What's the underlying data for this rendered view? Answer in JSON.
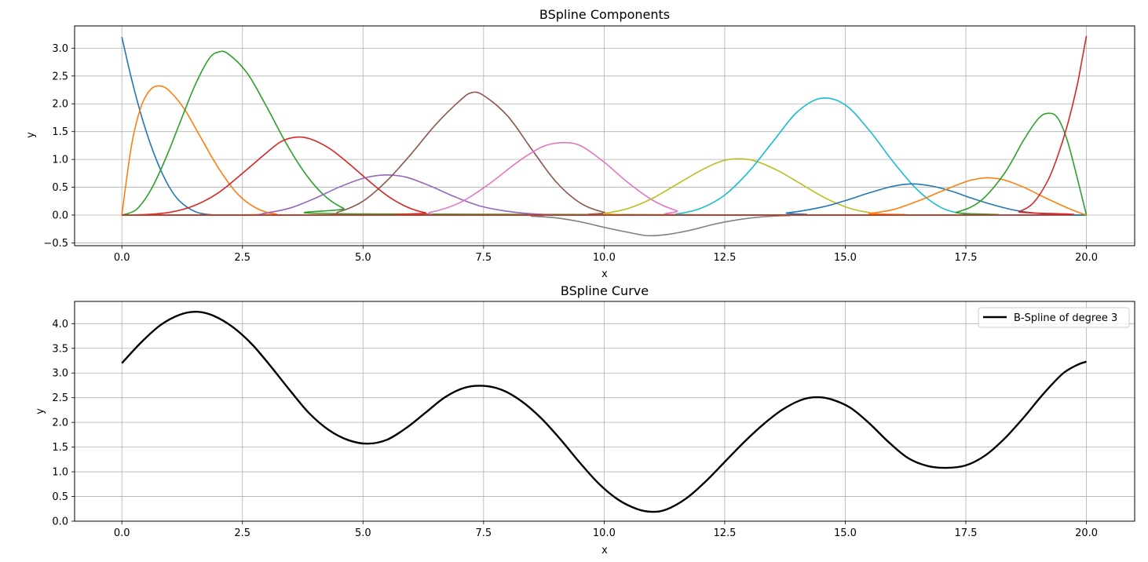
{
  "chart_data": [
    {
      "type": "line",
      "title": "BSpline Components",
      "xlabel": "x",
      "ylabel": "y",
      "xlim": [
        -0.98,
        21.0
      ],
      "ylim": [
        -0.55,
        3.4
      ],
      "xticks": [
        0.0,
        2.5,
        5.0,
        7.5,
        10.0,
        12.5,
        15.0,
        17.5,
        20.0
      ],
      "xtick_labels": [
        "0.0",
        "2.5",
        "5.0",
        "7.5",
        "10.0",
        "12.5",
        "15.0",
        "17.5",
        "20.0"
      ],
      "yticks": [
        -0.5,
        0.0,
        0.5,
        1.0,
        1.5,
        2.0,
        2.5,
        3.0
      ],
      "ytick_labels": [
        "−0.5",
        "0.0",
        "0.5",
        "1.0",
        "1.5",
        "2.0",
        "2.5",
        "3.0"
      ],
      "grid": true,
      "series": [
        {
          "color": "#1f77b4",
          "x": [
            0.0,
            0.2,
            0.4,
            0.6,
            0.8,
            1.0,
            1.2,
            1.5,
            1.8,
            2.2,
            3.0,
            20.0
          ],
          "y": [
            3.2,
            2.45,
            1.8,
            1.26,
            0.82,
            0.48,
            0.25,
            0.07,
            0.01,
            0.0,
            0.0,
            0.0
          ]
        },
        {
          "color": "#ff7f0e",
          "x": [
            0.0,
            0.2,
            0.4,
            0.6,
            0.8,
            1.0,
            1.3,
            1.6,
            2.0,
            2.4,
            2.8,
            3.2,
            3.8,
            20.0
          ],
          "y": [
            0.0,
            1.25,
            1.95,
            2.26,
            2.32,
            2.22,
            1.9,
            1.45,
            0.85,
            0.38,
            0.12,
            0.02,
            0.0,
            0.0
          ]
        },
        {
          "color": "#2ca02c",
          "x": [
            0.0,
            0.3,
            0.6,
            0.9,
            1.2,
            1.5,
            1.8,
            2.0,
            2.2,
            2.6,
            3.0,
            3.4,
            3.8,
            4.2,
            4.6,
            5.0,
            20.0
          ],
          "y": [
            0.0,
            0.1,
            0.45,
            1.0,
            1.65,
            2.3,
            2.8,
            2.93,
            2.9,
            2.55,
            1.95,
            1.3,
            0.75,
            0.35,
            0.12,
            0.02,
            0.0
          ]
        },
        {
          "color": "#d62728",
          "x": [
            0.0,
            0.5,
            1.0,
            1.5,
            2.0,
            2.5,
            3.0,
            3.3,
            3.6,
            3.9,
            4.3,
            4.7,
            5.1,
            5.5,
            5.9,
            6.3,
            6.8,
            20.0
          ],
          "y": [
            0.0,
            0.01,
            0.05,
            0.17,
            0.4,
            0.75,
            1.12,
            1.32,
            1.4,
            1.37,
            1.2,
            0.93,
            0.63,
            0.35,
            0.15,
            0.04,
            0.0,
            0.0
          ]
        },
        {
          "color": "#9467bd",
          "x": [
            0.0,
            2.5,
            3.0,
            3.5,
            4.0,
            4.5,
            5.0,
            5.45,
            5.9,
            6.4,
            6.9,
            7.4,
            7.9,
            8.4,
            9.0,
            9.6,
            20.0
          ],
          "y": [
            0.0,
            0.0,
            0.04,
            0.13,
            0.3,
            0.5,
            0.66,
            0.72,
            0.68,
            0.52,
            0.33,
            0.17,
            0.08,
            0.03,
            0.005,
            0.0,
            0.0
          ]
        },
        {
          "color": "#8c564b",
          "x": [
            0.0,
            4.0,
            4.5,
            5.0,
            5.5,
            6.0,
            6.5,
            7.0,
            7.25,
            7.5,
            8.0,
            8.5,
            9.0,
            9.5,
            10.0,
            10.5,
            20.0
          ],
          "y": [
            0.0,
            0.0,
            0.06,
            0.25,
            0.62,
            1.1,
            1.62,
            2.05,
            2.2,
            2.15,
            1.78,
            1.18,
            0.6,
            0.22,
            0.05,
            0.0,
            0.0
          ]
        },
        {
          "color": "#e377c2",
          "x": [
            0.0,
            5.8,
            6.4,
            7.0,
            7.6,
            8.2,
            8.7,
            9.1,
            9.5,
            10.0,
            10.5,
            11.0,
            11.5,
            12.0,
            20.0
          ],
          "y": [
            0.0,
            0.0,
            0.05,
            0.22,
            0.55,
            0.95,
            1.22,
            1.3,
            1.25,
            0.95,
            0.58,
            0.27,
            0.08,
            0.0,
            0.0
          ]
        },
        {
          "color": "#7f7f7f",
          "x": [
            0.0,
            8.0,
            8.5,
            9.0,
            9.5,
            10.0,
            10.5,
            10.9,
            11.3,
            11.8,
            12.3,
            12.8,
            13.3,
            13.8,
            14.5,
            20.0
          ],
          "y": [
            0.0,
            0.0,
            -0.02,
            -0.05,
            -0.12,
            -0.22,
            -0.31,
            -0.37,
            -0.35,
            -0.27,
            -0.16,
            -0.08,
            -0.03,
            -0.01,
            0.0,
            0.0
          ]
        },
        {
          "color": "#bcbd22",
          "x": [
            0.0,
            9.5,
            10.0,
            10.5,
            11.0,
            11.5,
            12.0,
            12.4,
            12.7,
            13.1,
            13.6,
            14.1,
            14.6,
            15.1,
            15.6,
            16.0,
            20.0
          ],
          "y": [
            0.0,
            0.0,
            0.03,
            0.12,
            0.3,
            0.55,
            0.8,
            0.96,
            1.01,
            0.98,
            0.8,
            0.55,
            0.3,
            0.12,
            0.03,
            0.0,
            0.0
          ]
        },
        {
          "color": "#17becf",
          "x": [
            0.0,
            11.0,
            11.5,
            12.0,
            12.5,
            13.0,
            13.5,
            14.0,
            14.5,
            15.0,
            15.5,
            16.0,
            16.5,
            17.0,
            17.5,
            18.0,
            20.0
          ],
          "y": [
            0.0,
            0.0,
            0.02,
            0.12,
            0.36,
            0.78,
            1.32,
            1.85,
            2.1,
            1.98,
            1.52,
            0.95,
            0.45,
            0.13,
            0.02,
            0.0,
            0.0
          ]
        },
        {
          "color": "#1f77b4",
          "x": [
            0.0,
            13.0,
            13.8,
            14.5,
            15.0,
            15.5,
            16.0,
            16.4,
            16.8,
            17.2,
            17.6,
            18.0,
            18.5,
            19.0,
            19.5,
            20.0
          ],
          "y": [
            0.0,
            0.0,
            0.04,
            0.14,
            0.26,
            0.4,
            0.52,
            0.56,
            0.52,
            0.43,
            0.31,
            0.2,
            0.09,
            0.03,
            0.005,
            0.0
          ]
        },
        {
          "color": "#ff7f0e",
          "x": [
            0.0,
            15.0,
            15.5,
            16.0,
            16.5,
            17.0,
            17.5,
            17.8,
            18.0,
            18.3,
            18.7,
            19.1,
            19.5,
            19.8,
            20.0
          ],
          "y": [
            0.0,
            0.0,
            0.03,
            0.1,
            0.25,
            0.43,
            0.6,
            0.66,
            0.67,
            0.63,
            0.5,
            0.33,
            0.17,
            0.06,
            0.0
          ]
        },
        {
          "color": "#2ca02c",
          "x": [
            0.0,
            16.8,
            17.3,
            17.8,
            18.3,
            18.7,
            19.0,
            19.2,
            19.4,
            19.6,
            19.8,
            20.0
          ],
          "y": [
            0.0,
            0.0,
            0.05,
            0.25,
            0.75,
            1.35,
            1.73,
            1.83,
            1.75,
            1.35,
            0.7,
            0.0
          ]
        },
        {
          "color": "#d62728",
          "x": [
            0.0,
            18.3,
            18.6,
            18.9,
            19.2,
            19.4,
            19.6,
            19.8,
            19.9,
            20.0
          ],
          "y": [
            0.0,
            0.0,
            0.06,
            0.22,
            0.62,
            1.05,
            1.6,
            2.3,
            2.75,
            3.22
          ]
        }
      ]
    },
    {
      "type": "line",
      "title": "BSpline Curve",
      "xlabel": "x",
      "ylabel": "y",
      "xlim": [
        -0.98,
        21.0
      ],
      "ylim": [
        0.0,
        4.45
      ],
      "xticks": [
        0.0,
        2.5,
        5.0,
        7.5,
        10.0,
        12.5,
        15.0,
        17.5,
        20.0
      ],
      "xtick_labels": [
        "0.0",
        "2.5",
        "5.0",
        "7.5",
        "10.0",
        "12.5",
        "15.0",
        "17.5",
        "20.0"
      ],
      "yticks": [
        0.0,
        0.5,
        1.0,
        1.5,
        2.0,
        2.5,
        3.0,
        3.5,
        4.0
      ],
      "ytick_labels": [
        "0.0",
        "0.5",
        "1.0",
        "1.5",
        "2.0",
        "2.5",
        "3.0",
        "3.5",
        "4.0"
      ],
      "grid": true,
      "legend_position": "top-right",
      "series": [
        {
          "name": "B-Spline of degree 3",
          "color": "#000000",
          "x": [
            0.0,
            0.4,
            0.8,
            1.2,
            1.55,
            1.9,
            2.3,
            2.7,
            3.1,
            3.5,
            3.9,
            4.3,
            4.7,
            5.1,
            5.5,
            5.9,
            6.3,
            6.7,
            7.1,
            7.5,
            7.9,
            8.3,
            8.7,
            9.1,
            9.5,
            9.9,
            10.3,
            10.7,
            11.0,
            11.3,
            11.7,
            12.1,
            12.5,
            12.9,
            13.3,
            13.7,
            14.1,
            14.4,
            14.7,
            15.1,
            15.5,
            15.9,
            16.3,
            16.7,
            17.1,
            17.5,
            17.9,
            18.3,
            18.7,
            19.1,
            19.5,
            19.8,
            20.0
          ],
          "y": [
            3.2,
            3.62,
            3.97,
            4.18,
            4.24,
            4.16,
            3.93,
            3.58,
            3.12,
            2.63,
            2.17,
            1.84,
            1.64,
            1.57,
            1.65,
            1.89,
            2.2,
            2.51,
            2.7,
            2.74,
            2.65,
            2.42,
            2.08,
            1.65,
            1.18,
            0.75,
            0.43,
            0.24,
            0.19,
            0.24,
            0.46,
            0.8,
            1.2,
            1.6,
            1.96,
            2.26,
            2.46,
            2.51,
            2.47,
            2.3,
            1.98,
            1.6,
            1.28,
            1.12,
            1.08,
            1.13,
            1.33,
            1.67,
            2.1,
            2.57,
            2.98,
            3.16,
            3.23
          ]
        }
      ]
    }
  ]
}
